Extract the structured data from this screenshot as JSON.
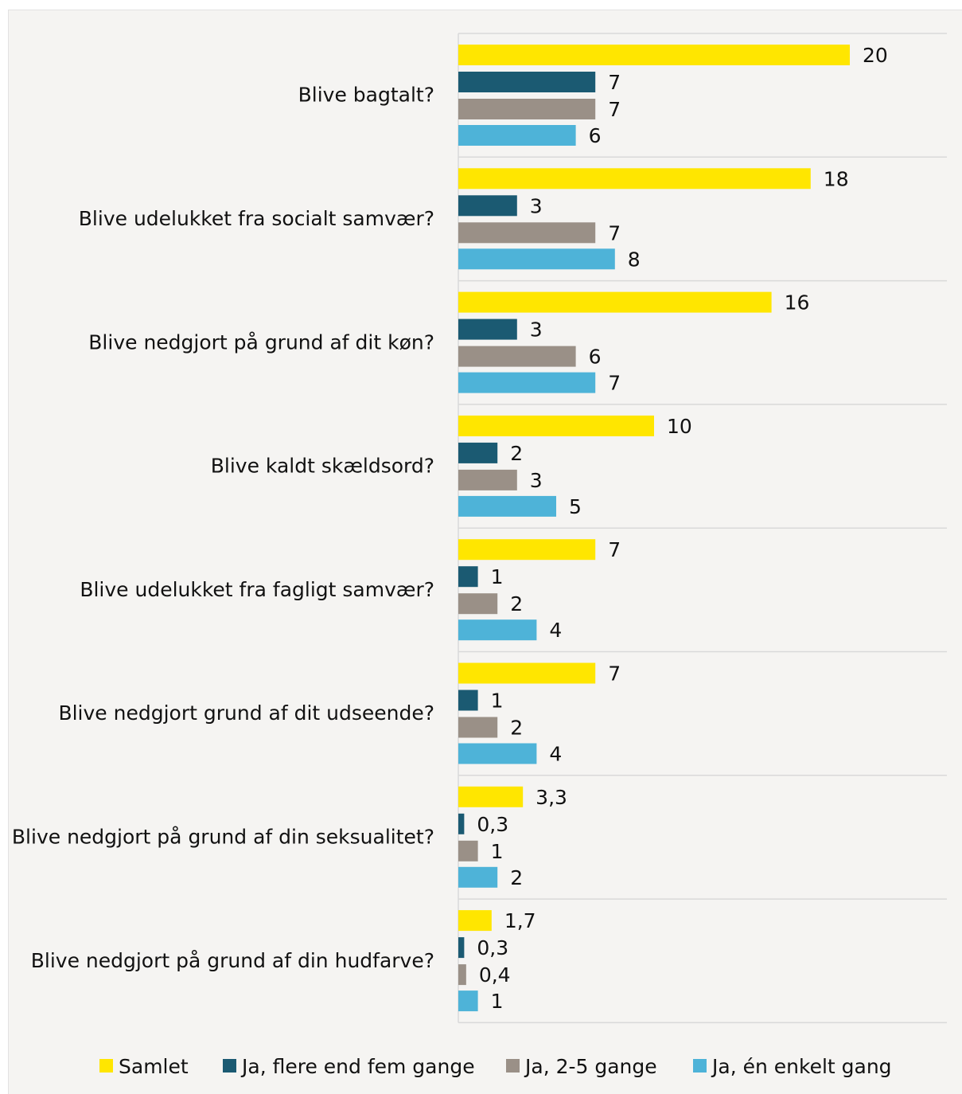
{
  "chart_data": {
    "type": "bar",
    "orientation": "horizontal",
    "title": "",
    "xlabel": "",
    "ylabel": "",
    "grid": true,
    "legend_position": "bottom",
    "categories": [
      "Blive bagtalt?",
      "Blive udelukket fra socialt samvær?",
      "Blive nedgjort på grund af dit køn?",
      "Blive kaldt skældsord?",
      "Blive udelukket fra fagligt samvær?",
      "Blive nedgjort grund af dit udseende?",
      "Blive nedgjort på grund af din seksualitet?",
      "Blive nedgjort på grund af din hudfarve?"
    ],
    "series": [
      {
        "name": "Samlet",
        "color": "#ffe600",
        "values": [
          20,
          18,
          16,
          10,
          7,
          7,
          3.3,
          1.7
        ],
        "labels": [
          "20",
          "18",
          "16",
          "10",
          "7",
          "7",
          "3,3",
          "1,7"
        ]
      },
      {
        "name": "Ja, flere end fem gange",
        "color": "#1b5a72",
        "values": [
          7,
          3,
          3,
          2,
          1,
          1,
          0.3,
          0.3
        ],
        "labels": [
          "7",
          "3",
          "3",
          "2",
          "1",
          "1",
          "0,3",
          "0,3"
        ]
      },
      {
        "name": "Ja, 2-5 gange",
        "color": "#9a9087",
        "values": [
          7,
          7,
          6,
          3,
          2,
          2,
          1,
          0.4
        ],
        "labels": [
          "7",
          "7",
          "6",
          "3",
          "2",
          "2",
          "1",
          "0,4"
        ]
      },
      {
        "name": "Ja, én enkelt gang",
        "color": "#4eb3d8",
        "values": [
          6,
          8,
          7,
          5,
          4,
          4,
          2,
          1
        ],
        "labels": [
          "6",
          "8",
          "7",
          "5",
          "4",
          "4",
          "2",
          "1"
        ]
      }
    ]
  }
}
